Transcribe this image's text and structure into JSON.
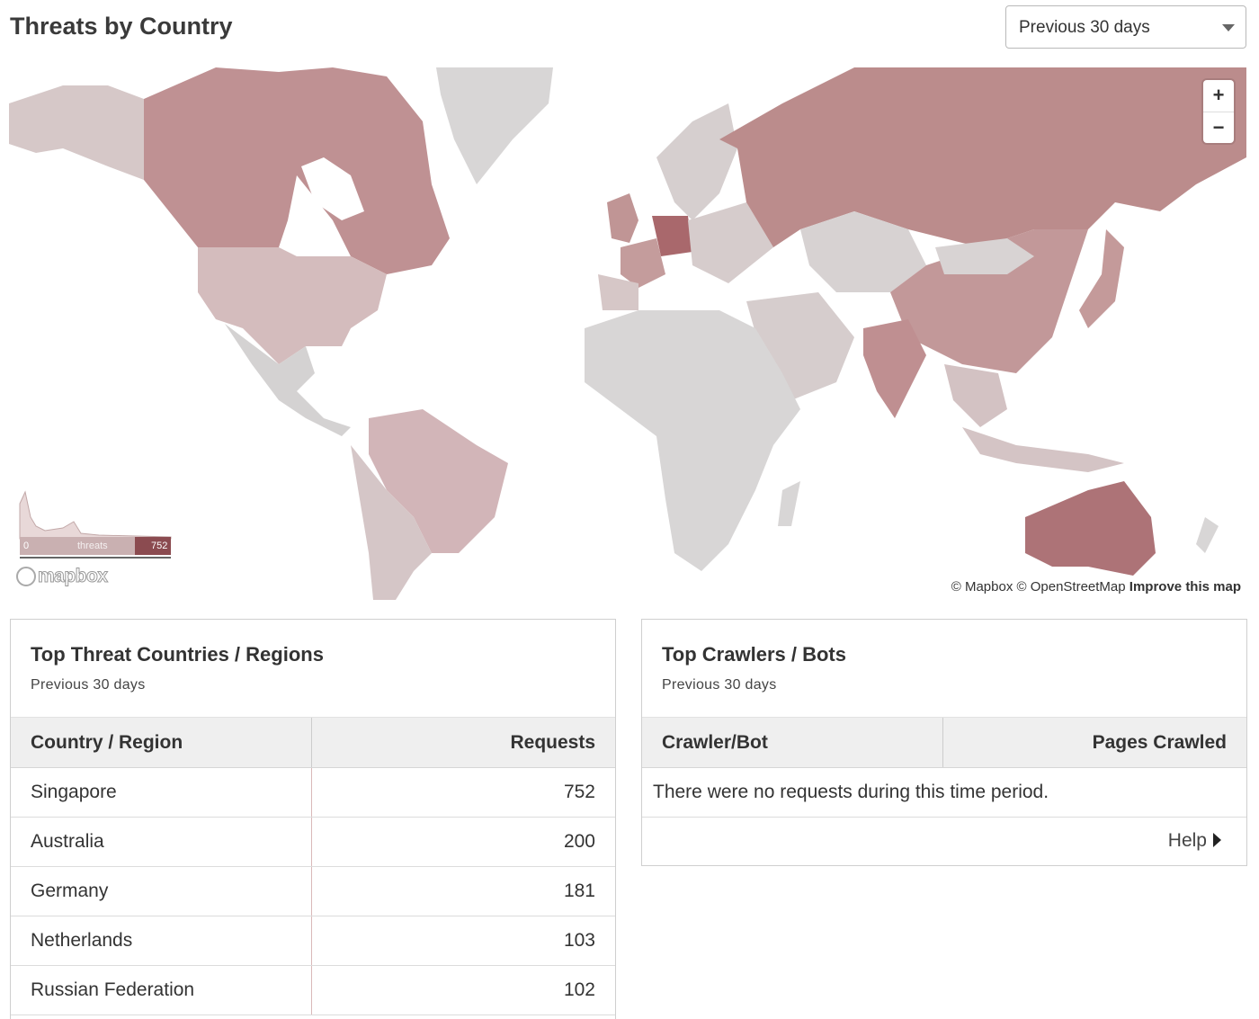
{
  "header": {
    "title": "Threats by Country",
    "range": "Previous 30 days"
  },
  "map": {
    "zoom_in": "+",
    "zoom_out": "−",
    "legend": {
      "min": "0",
      "label": "threats",
      "max": "752"
    },
    "logo": "mapbox",
    "attribution": {
      "mapbox": "© Mapbox",
      "osm": "© OpenStreetMap",
      "improve": "Improve this map"
    },
    "colors": {
      "low": "#d6d3d3",
      "mid_low": "#d3b9b9",
      "mid": "#c49a9a",
      "high": "#bb8c8c",
      "max": "#a9686c"
    }
  },
  "threats_card": {
    "title": "Top Threat Countries / Regions",
    "subtitle": "Previous 30 days",
    "columns": [
      "Country / Region",
      "Requests"
    ],
    "rows": [
      {
        "country": "Singapore",
        "requests": "752"
      },
      {
        "country": "Australia",
        "requests": "200"
      },
      {
        "country": "Germany",
        "requests": "181"
      },
      {
        "country": "Netherlands",
        "requests": "103"
      },
      {
        "country": "Russian Federation",
        "requests": "102"
      }
    ]
  },
  "crawlers_card": {
    "title": "Top Crawlers / Bots",
    "subtitle": "Previous 30 days",
    "columns": [
      "Crawler/Bot",
      "Pages Crawled"
    ],
    "empty_message": "There were no requests during this time period.",
    "help": "Help"
  }
}
